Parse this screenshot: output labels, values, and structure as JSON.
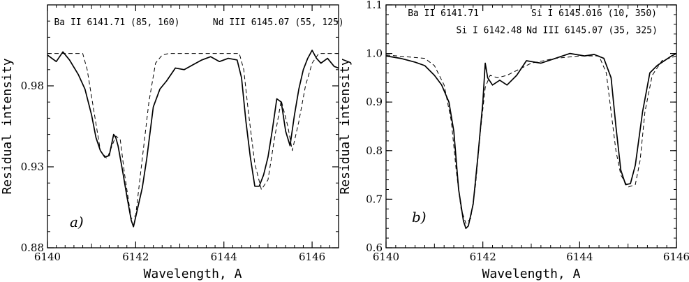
{
  "chart_data": [
    {
      "type": "line",
      "xlabel": "Wavelength, A",
      "ylabel": "Residual intensity",
      "xlim": [
        6140,
        6146.6
      ],
      "ylim": [
        0.88,
        1.03
      ],
      "xticks": [
        "6140",
        "6142",
        "6144",
        "6146"
      ],
      "yticks": [
        "0.88",
        "0.93",
        "0.98"
      ],
      "panel_label": "a)",
      "annotations": [
        {
          "text": "Ba II 6141.71 (85, 160)",
          "x": 6140.15,
          "y": 1.0175
        },
        {
          "text": "Nd III 6145.07 (55, 125)",
          "x": 6143.75,
          "y": 1.0175
        }
      ],
      "series": [
        {
          "style": "solid",
          "x": [
            6140.0,
            6140.2,
            6140.35,
            6140.5,
            6140.7,
            6140.85,
            6141.0,
            6141.1,
            6141.2,
            6141.3,
            6141.4,
            6141.5,
            6141.55,
            6141.6,
            6141.7,
            6141.8,
            6141.9,
            6141.95,
            6142.05,
            6142.15,
            6142.25,
            6142.4,
            6142.55,
            6142.7,
            6142.9,
            6143.1,
            6143.3,
            6143.5,
            6143.7,
            6143.9,
            6144.1,
            6144.3,
            6144.4,
            6144.5,
            6144.6,
            6144.7,
            6144.8,
            6144.9,
            6145.0,
            6145.1,
            6145.2,
            6145.3,
            6145.4,
            6145.5,
            6145.6,
            6145.7,
            6145.8,
            6145.9,
            6146.0,
            6146.1,
            6146.2,
            6146.35,
            6146.5,
            6146.6
          ],
          "y": [
            0.999,
            0.995,
            1.001,
            0.996,
            0.987,
            0.978,
            0.962,
            0.948,
            0.94,
            0.936,
            0.937,
            0.95,
            0.948,
            0.943,
            0.928,
            0.912,
            0.897,
            0.893,
            0.905,
            0.917,
            0.935,
            0.967,
            0.978,
            0.983,
            0.991,
            0.99,
            0.993,
            0.996,
            0.998,
            0.995,
            0.997,
            0.996,
            0.985,
            0.958,
            0.936,
            0.918,
            0.918,
            0.925,
            0.936,
            0.953,
            0.972,
            0.97,
            0.952,
            0.943,
            0.962,
            0.978,
            0.99,
            0.997,
            1.002,
            0.997,
            0.994,
            0.997,
            0.992,
            0.991
          ]
        },
        {
          "style": "dashed",
          "x": [
            6140.0,
            6140.8,
            6140.9,
            6141.05,
            6141.2,
            6141.35,
            6141.55,
            6141.65,
            6141.75,
            6141.9,
            6142.0,
            6142.15,
            6142.3,
            6142.45,
            6142.6,
            6142.75,
            6144.35,
            6144.45,
            6144.55,
            6144.7,
            6144.85,
            6145.0,
            6145.15,
            6145.3,
            6145.45,
            6145.55,
            6145.7,
            6145.85,
            6146.0,
            6146.15,
            6146.6
          ],
          "y": [
            1.0,
            1.0,
            0.99,
            0.965,
            0.94,
            0.935,
            0.949,
            0.947,
            0.925,
            0.898,
            0.9,
            0.935,
            0.97,
            0.994,
            0.999,
            1.0,
            1.0,
            0.99,
            0.965,
            0.932,
            0.916,
            0.922,
            0.948,
            0.971,
            0.955,
            0.94,
            0.958,
            0.98,
            0.994,
            1.0,
            1.0
          ]
        }
      ]
    },
    {
      "type": "line",
      "xlabel": "Wavelength, A",
      "ylabel": "Residual intensity",
      "xlim": [
        6140,
        6146
      ],
      "ylim": [
        0.6,
        1.1
      ],
      "xticks": [
        "6140",
        "6142",
        "6144",
        "6146"
      ],
      "yticks": [
        "0.6",
        "0.7",
        "0.8",
        "0.9",
        "1.0",
        "1.1"
      ],
      "panel_label": "b)",
      "annotations": [
        {
          "text": "Ba II 6141.71",
          "x": 6140.45,
          "y": 1.077
        },
        {
          "text": "Si I 6145.016 (10, 350)",
          "x": 6143.0,
          "y": 1.077
        },
        {
          "text": "Si I 6142.48",
          "x": 6141.45,
          "y": 1.042
        },
        {
          "text": "Nd III 6145.07 (35, 325)",
          "x": 6142.9,
          "y": 1.042
        }
      ],
      "series": [
        {
          "style": "solid",
          "x": [
            6140.0,
            6140.3,
            6140.6,
            6140.8,
            6141.0,
            6141.15,
            6141.3,
            6141.4,
            6141.5,
            6141.6,
            6141.65,
            6141.7,
            6141.8,
            6141.9,
            6142.0,
            6142.05,
            6142.1,
            6142.2,
            6142.35,
            6142.5,
            6142.7,
            6142.9,
            6143.2,
            6143.5,
            6143.8,
            6144.1,
            6144.3,
            6144.5,
            6144.65,
            6144.75,
            6144.85,
            6144.95,
            6145.05,
            6145.15,
            6145.3,
            6145.45,
            6145.6,
            6145.75,
            6145.9,
            6146.0
          ],
          "y": [
            0.995,
            0.99,
            0.982,
            0.975,
            0.955,
            0.935,
            0.9,
            0.84,
            0.72,
            0.655,
            0.64,
            0.645,
            0.69,
            0.79,
            0.9,
            0.98,
            0.95,
            0.935,
            0.945,
            0.935,
            0.955,
            0.985,
            0.98,
            0.99,
            1.0,
            0.995,
            0.998,
            0.99,
            0.95,
            0.85,
            0.76,
            0.73,
            0.732,
            0.77,
            0.88,
            0.96,
            0.975,
            0.985,
            0.995,
            1.0
          ]
        },
        {
          "style": "dashed",
          "x": [
            6140.0,
            6140.8,
            6141.0,
            6141.2,
            6141.35,
            6141.45,
            6141.55,
            6141.65,
            6141.75,
            6141.85,
            6141.95,
            6142.05,
            6142.15,
            6142.3,
            6142.5,
            6142.7,
            6143.0,
            6143.5,
            6144.0,
            6144.4,
            6144.55,
            6144.65,
            6144.75,
            6144.85,
            6145.0,
            6145.15,
            6145.25,
            6145.35,
            6145.5,
            6145.7,
            6146.0
          ],
          "y": [
            0.997,
            0.99,
            0.975,
            0.935,
            0.86,
            0.76,
            0.68,
            0.65,
            0.66,
            0.73,
            0.84,
            0.93,
            0.955,
            0.95,
            0.955,
            0.965,
            0.98,
            0.99,
            0.995,
            0.995,
            0.96,
            0.88,
            0.8,
            0.75,
            0.725,
            0.73,
            0.78,
            0.88,
            0.955,
            0.985,
            0.995
          ]
        }
      ]
    }
  ]
}
